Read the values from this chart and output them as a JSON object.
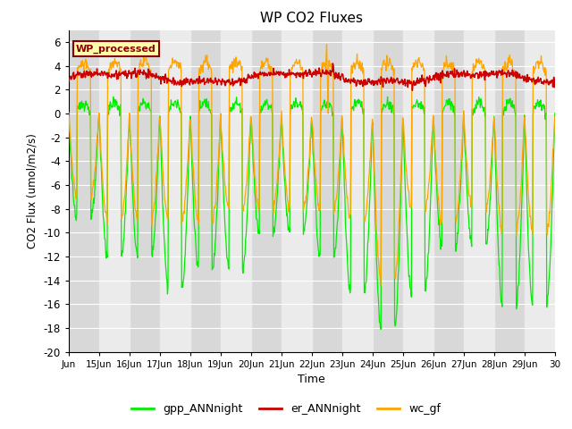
{
  "title": "WP CO2 Fluxes",
  "xlabel": "Time",
  "ylabel_text": "CO2 Flux (umol/m2/s)",
  "ylim": [
    -20,
    7
  ],
  "yticks": [
    -20,
    -18,
    -16,
    -14,
    -12,
    -10,
    -8,
    -6,
    -4,
    -2,
    0,
    2,
    4,
    6
  ],
  "color_gpp": "#00ee00",
  "color_er": "#cc0000",
  "color_wc": "#ffa500",
  "legend_label": "WP_processed",
  "legend_bg": "#ffffaa",
  "legend_edge": "#880000",
  "series_names": [
    "gpp_ANNnight",
    "er_ANNnight",
    "wc_gf"
  ],
  "n_points": 960,
  "background_color": "#ffffff",
  "plot_bg": "#d8d8d8",
  "band_light": "#ebebeb",
  "grid_color": "#ffffff"
}
